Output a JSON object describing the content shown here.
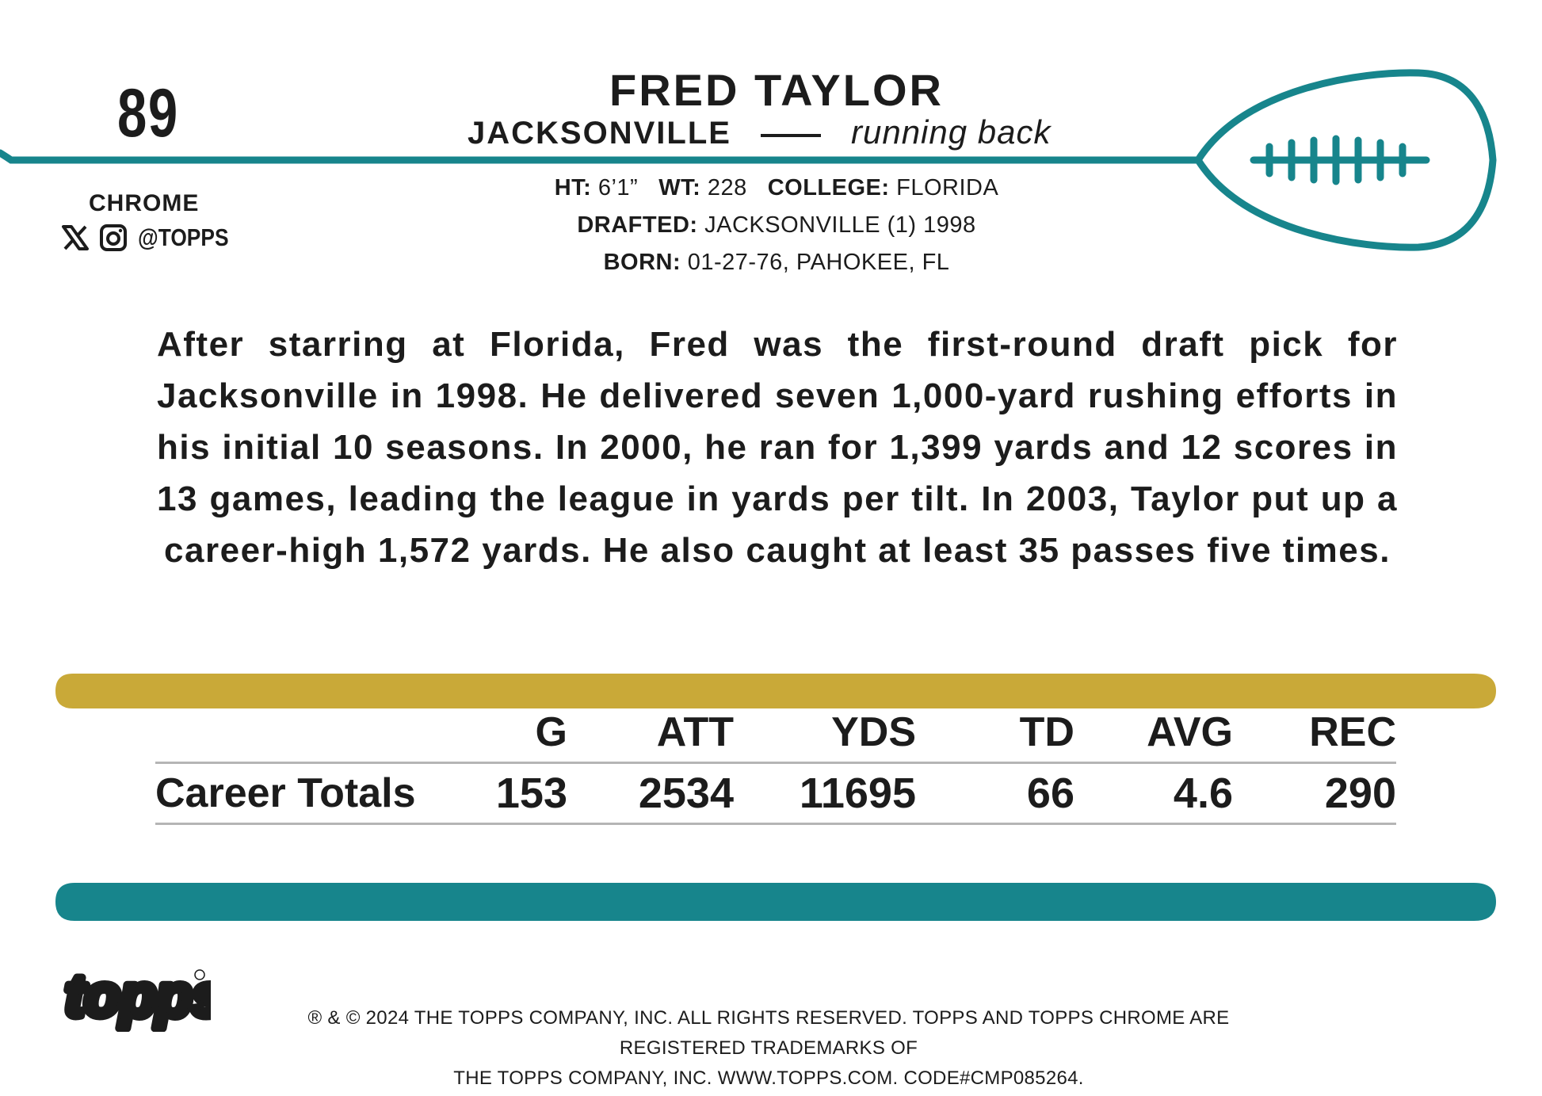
{
  "colors": {
    "teal": "#17858c",
    "gold": "#c9a938",
    "text": "#1c1c1c",
    "rule": "#b5b5b5"
  },
  "card": {
    "number": "89",
    "brand_line": "CHROME",
    "social_icons": [
      "x-icon",
      "instagram-icon"
    ],
    "social_handle": "@TOPPS"
  },
  "player": {
    "name": "FRED TAYLOR",
    "team": "JACKSONVILLE",
    "position": "running back"
  },
  "bio": {
    "height_label": "HT:",
    "height": "6’1”",
    "weight_label": "WT:",
    "weight": "228",
    "college_label": "COLLEGE:",
    "college": "FLORIDA",
    "drafted_label": "DRAFTED:",
    "drafted": "JACKSONVILLE (1) 1998",
    "born_label": "BORN:",
    "born": "01-27-76, PAHOKEE, FL"
  },
  "blurb": "After starring at Florida, Fred was the first-round draft pick for Jacksonville in 1998. He delivered seven 1,000-yard rushing efforts in his initial 10 seasons. In 2000, he ran for 1,399 yards and 12 scores in 13 games, leading the league in yards per tilt. In 2003, Taylor put up a career-high 1,572 yards. He also caught at least 35 passes five times.",
  "stats": {
    "headers": [
      "G",
      "ATT",
      "YDS",
      "TD",
      "AVG",
      "REC"
    ],
    "row_label": "Career Totals",
    "values": [
      "153",
      "2534",
      "11695",
      "66",
      "4.6",
      "290"
    ]
  },
  "legal": {
    "line1": "® & © 2024 THE TOPPS COMPANY, INC. ALL RIGHTS RESERVED. TOPPS AND TOPPS CHROME ARE REGISTERED TRADEMARKS OF",
    "line2": "THE TOPPS COMPANY, INC. WWW.TOPPS.COM. CODE#CMP085264."
  },
  "logo_text": "topps"
}
